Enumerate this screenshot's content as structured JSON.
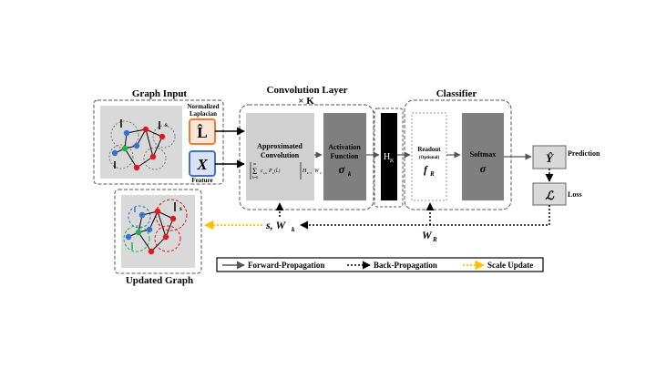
{
  "graph_input": {
    "title": "Graph Input",
    "laplacian_caption_line1": "Normalized",
    "laplacian_caption_line2": "Laplacian",
    "laplacian_symbol": "L̂",
    "feature_symbol": "X",
    "feature_caption": "Feature",
    "scale_mark": "s"
  },
  "convolution": {
    "title": "Convolution Layer",
    "repeat": "× K",
    "approx_line1": "Approximated",
    "approx_line2": "Convolution",
    "formula_sum": "Σ",
    "formula_sum_top": "m",
    "formula_sum_bottom": "k=0",
    "formula_main": "c",
    "formula_sub": "s,k",
    "formula_rest": "P",
    "formula_rest_sub": "k",
    "formula_arg": "(L̂)",
    "formula_tail": "H",
    "formula_tail_sub": "k−1",
    "formula_w": "W",
    "formula_w_sub": "k",
    "activation_line1": "Activation",
    "activation_line2": "Function",
    "activation_symbol": "σ",
    "activation_sub": "k",
    "hidden_label": "H",
    "hidden_sub": "K"
  },
  "classifier": {
    "title": "Classifier",
    "readout_label": "Readout",
    "readout_optional": "(Optional)",
    "readout_symbol": "f",
    "readout_sub": "R",
    "softmax_label": "Softmax",
    "softmax_symbol": "σ"
  },
  "outputs": {
    "prediction_symbol": "Ŷ",
    "prediction_label": "Prediction",
    "loss_symbol": "ℒ",
    "loss_label": "Loss"
  },
  "backprop_labels": {
    "conv_params": "s, W",
    "conv_params_sub": "k",
    "readout_params": "W",
    "readout_params_sub": "R"
  },
  "updated_graph": {
    "title": "Updated Graph",
    "scale_mark": "s"
  },
  "legend": {
    "forward": "Forward-Propagation",
    "back": "Back-Propagation",
    "scale": "Scale Update"
  },
  "colors": {
    "panel_gray": "#d9d9d9",
    "block_light": "#d0d0d0",
    "block_dark": "#7f7f7f",
    "hidden_black": "#000000",
    "laplacian_border": "#ed7d31",
    "laplacian_fill": "#fbe5d6",
    "feature_border": "#4472c4",
    "feature_fill": "#dae3f3",
    "scale_arrow": "#ffc000",
    "node_red": "#e8141b",
    "node_blue": "#2e75d6",
    "node_green": "#1fb24a"
  }
}
